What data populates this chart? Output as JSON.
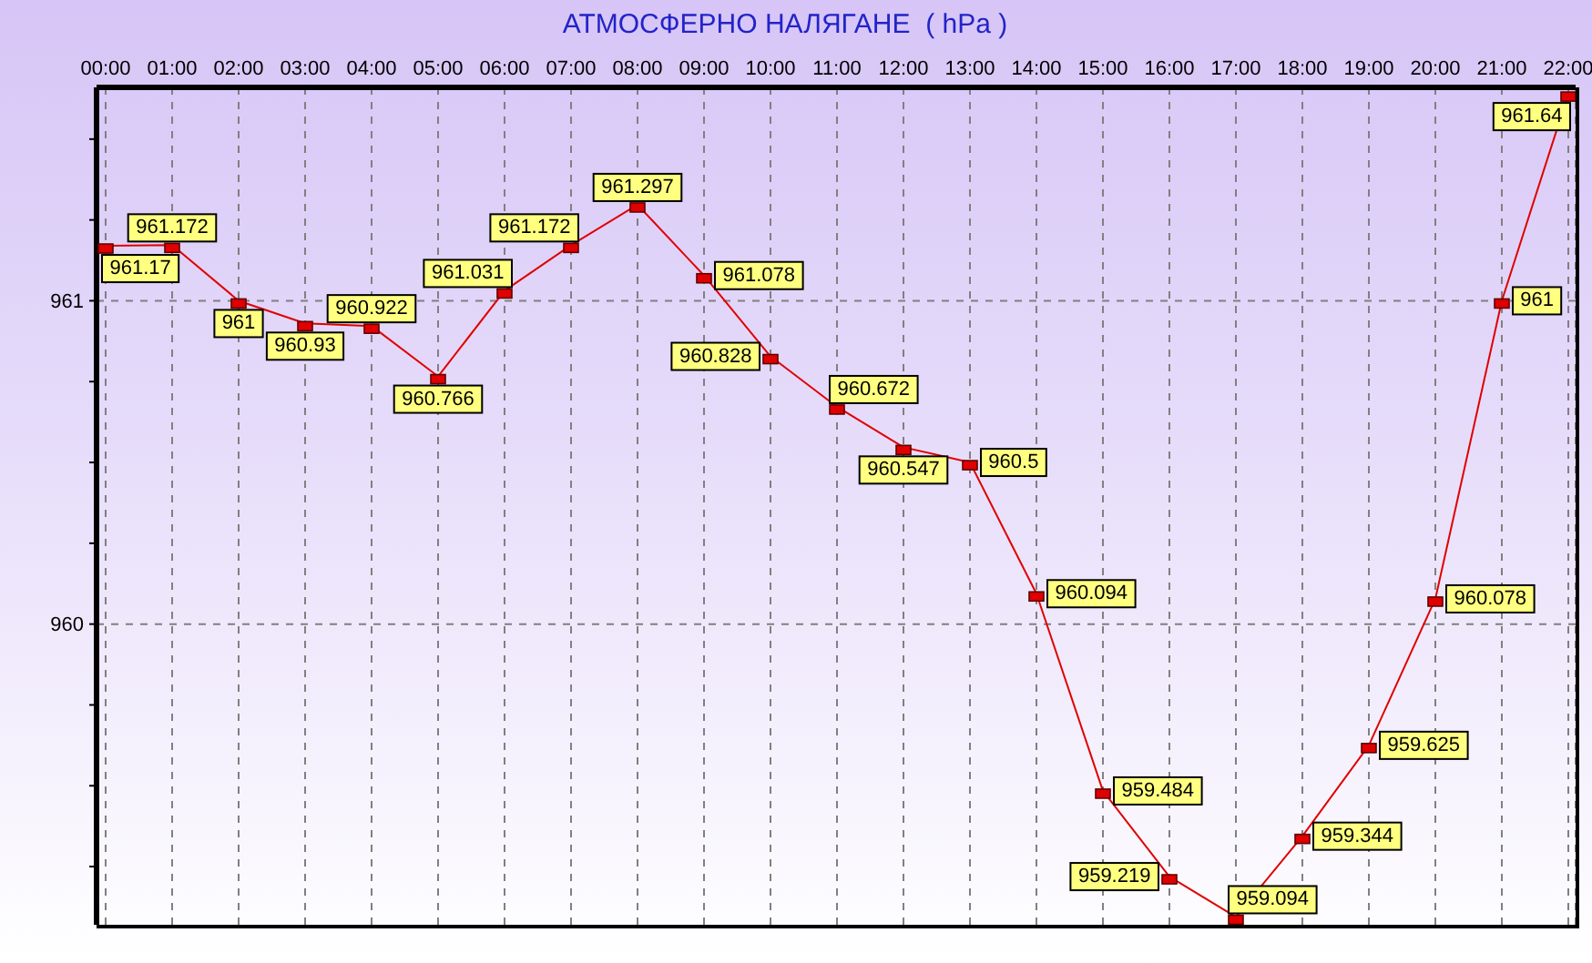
{
  "chart_data": {
    "type": "line",
    "title": "АТМОСФЕРНО НАЛЯГАНЕ  ( hPa )",
    "categories": [
      "00:00",
      "01:00",
      "02:00",
      "03:00",
      "04:00",
      "05:00",
      "06:00",
      "07:00",
      "08:00",
      "09:00",
      "10:00",
      "11:00",
      "12:00",
      "13:00",
      "14:00",
      "15:00",
      "16:00",
      "17:00",
      "18:00",
      "19:00",
      "20:00",
      "21:00",
      "22:00"
    ],
    "series": [
      {
        "color": "#e00000",
        "values": [
          961.17,
          961.172,
          961,
          960.93,
          960.922,
          960.766,
          961.031,
          961.172,
          961.297,
          961.078,
          960.828,
          960.672,
          960.547,
          960.5,
          960.094,
          959.484,
          959.219,
          959.094,
          959.344,
          959.625,
          960.078,
          961,
          961.64
        ]
      }
    ],
    "ylim": [
      959.07,
      961.66
    ],
    "yticks": [
      {
        "value": 959.25,
        "label": null
      },
      {
        "value": 959.5,
        "label": null
      },
      {
        "value": 959.75,
        "label": null
      },
      960,
      {
        "value": 960.25,
        "label": null
      },
      {
        "value": 960.5,
        "label": null
      },
      {
        "value": 960.75,
        "label": null
      },
      961,
      {
        "value": 961.25,
        "label": null
      },
      {
        "value": 961.5,
        "label": null
      }
    ],
    "grid": true,
    "marker": "square",
    "data_labels": true
  }
}
